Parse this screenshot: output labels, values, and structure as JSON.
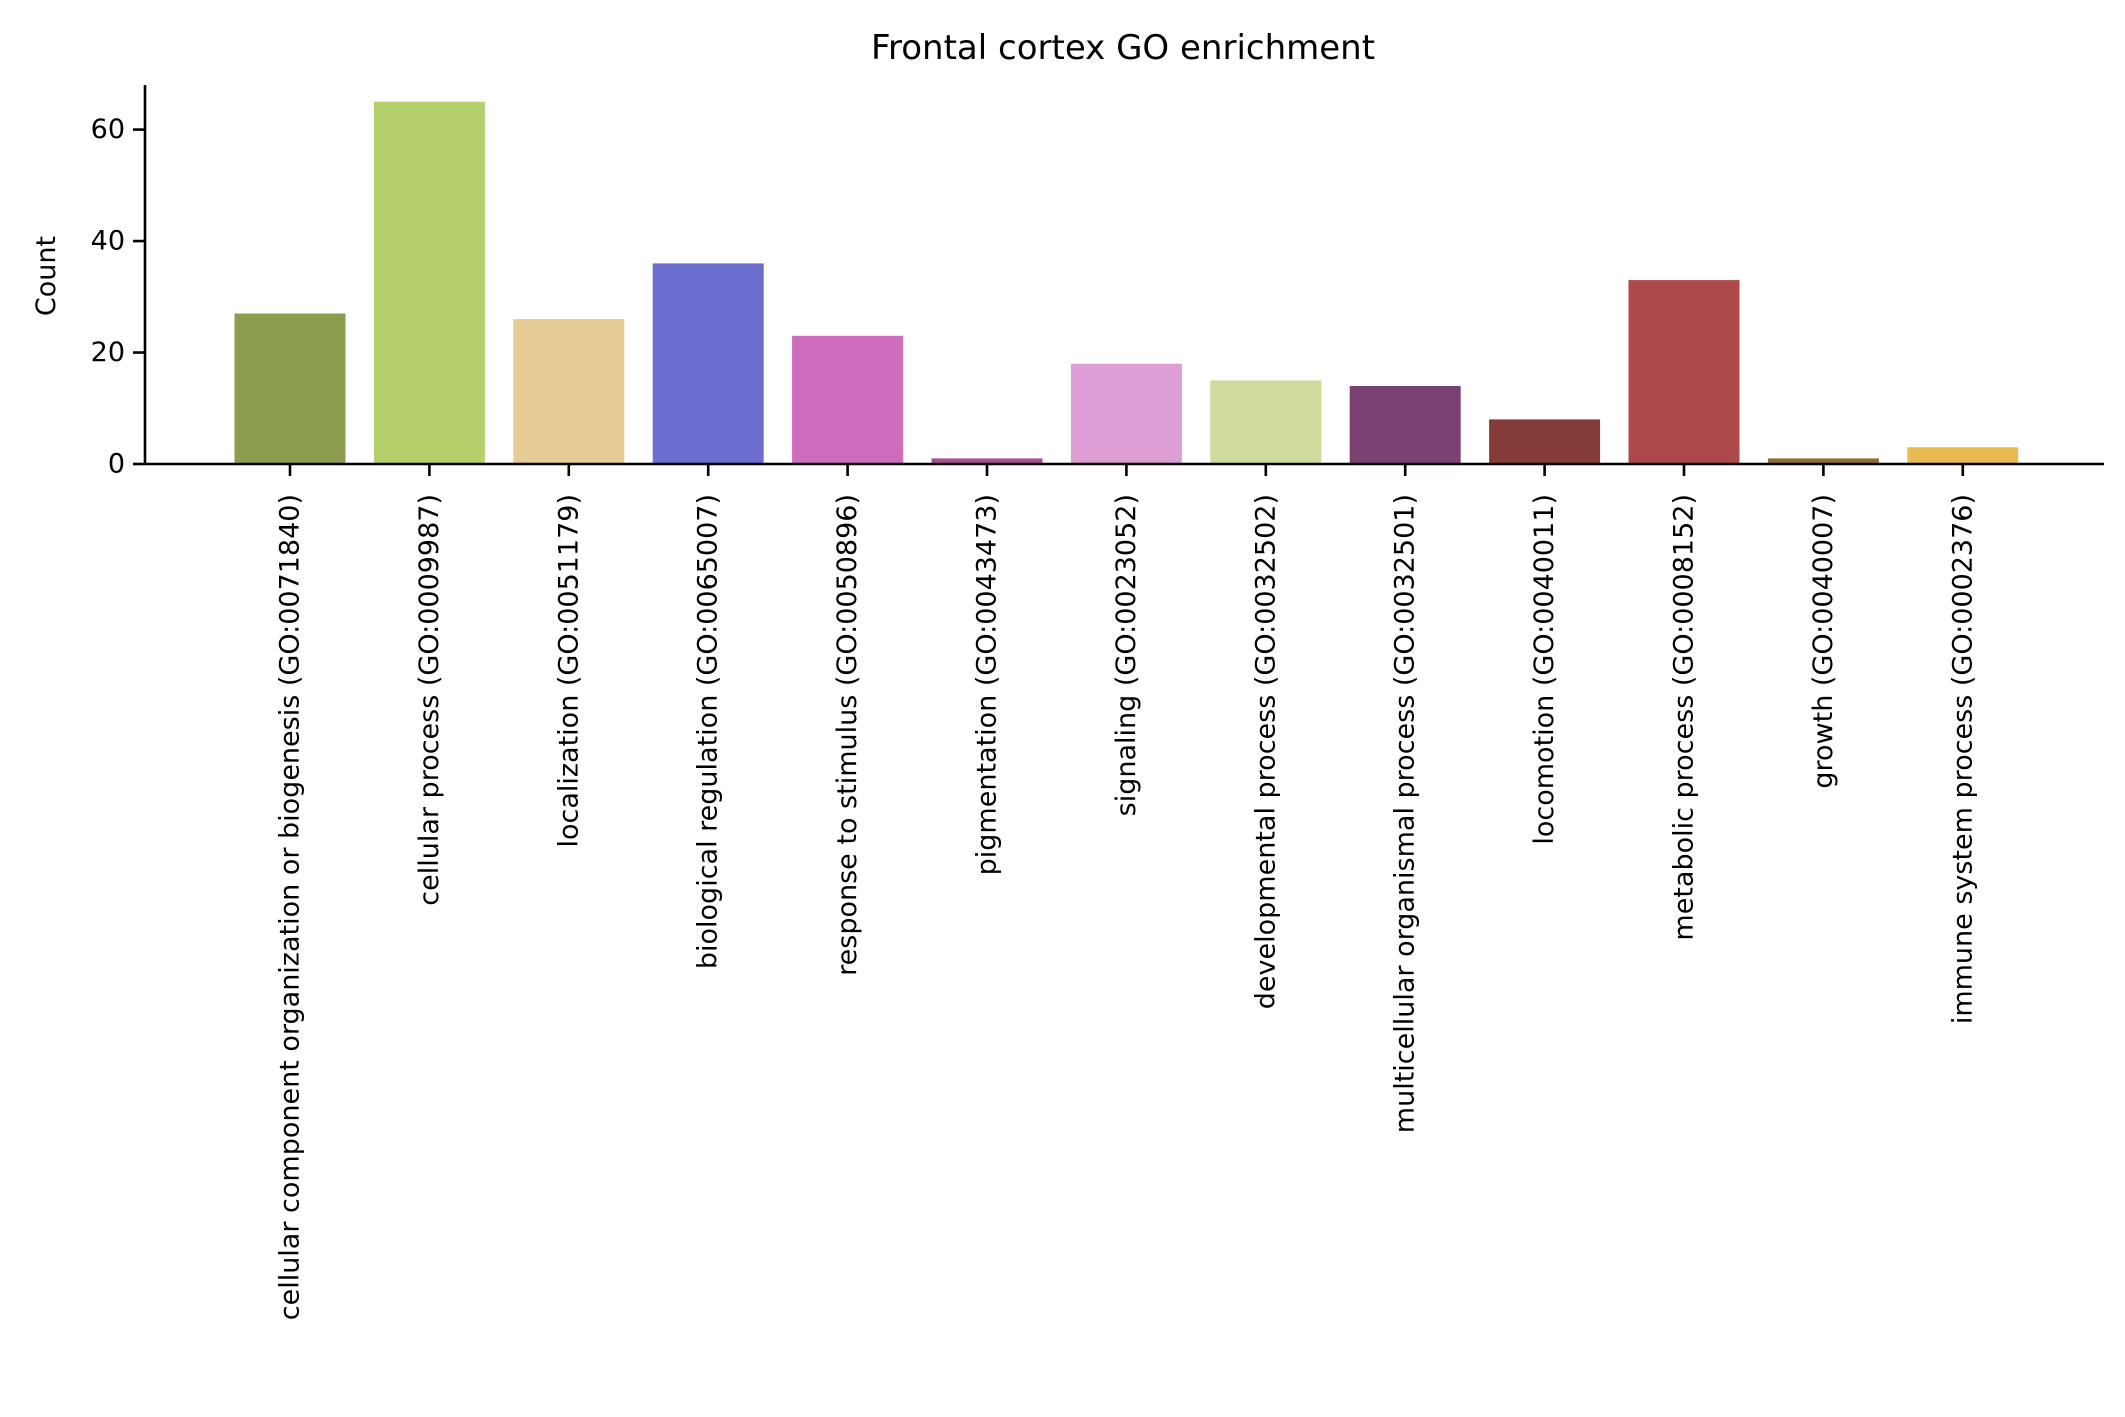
{
  "chart_data": {
    "type": "bar",
    "title": "Frontal cortex GO enrichment",
    "xlabel": "",
    "ylabel": "Count",
    "ylim": [
      0,
      68
    ],
    "yticks": [
      0,
      20,
      40,
      60
    ],
    "grid": false,
    "categories": [
      "cellular component organization or biogenesis (GO:0071840)",
      "cellular process (GO:0009987)",
      "localization (GO:0051179)",
      "biological regulation (GO:0065007)",
      "response to stimulus (GO:0050896)",
      "pigmentation (GO:0043473)",
      "signaling (GO:0023052)",
      "developmental process (GO:0032502)",
      "multicellular organismal process (GO:0032501)",
      "locomotion (GO:0040011)",
      "metabolic process (GO:0008152)",
      "growth (GO:0040007)",
      "immune system process (GO:0002376)"
    ],
    "values": [
      27,
      65,
      26,
      36,
      23,
      1,
      18,
      15,
      14,
      8,
      33,
      1,
      3
    ],
    "colors": [
      "#8b9e50",
      "#b5cf6b",
      "#e7cb94",
      "#6b6ecf",
      "#ce6dbd",
      "#a55194",
      "#de9ed6",
      "#cedb9c",
      "#7b4173",
      "#843c39",
      "#ad494a",
      "#8c6d31",
      "#e7ba52"
    ]
  }
}
